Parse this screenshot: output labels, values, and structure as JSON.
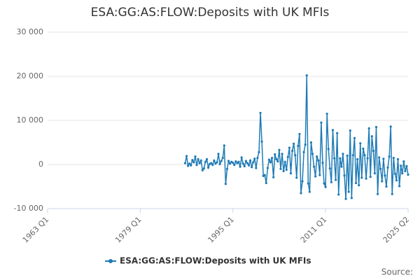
{
  "chart_data": {
    "type": "line",
    "title": "ESA:GG:AS:FLOW:Deposits with UK MFIs",
    "categories": [
      "1963 Q1",
      null,
      null,
      null,
      null,
      null,
      null,
      null,
      null,
      null,
      null,
      null,
      null,
      null,
      null,
      null,
      null,
      null,
      null,
      null,
      null,
      null,
      null,
      null,
      null,
      null,
      null,
      null,
      null,
      null,
      null,
      null,
      null,
      null,
      null,
      null,
      null,
      null,
      null,
      null,
      null,
      null,
      null,
      null,
      null,
      null,
      null,
      null,
      null,
      null,
      null,
      null,
      null,
      null,
      null,
      null,
      null,
      null,
      null,
      null,
      null,
      null,
      null,
      null,
      "1979 Q1",
      null,
      null,
      null,
      null,
      null,
      null,
      null,
      null,
      null,
      null,
      null,
      null,
      null,
      null,
      null,
      null,
      null,
      null,
      null,
      null,
      null,
      null,
      null,
      null,
      null,
      null,
      null,
      null,
      null,
      null,
      null,
      null,
      null,
      null,
      null,
      null,
      null,
      null,
      null,
      null,
      null,
      null,
      null,
      null,
      null,
      null,
      null,
      null,
      null,
      null,
      null,
      null,
      null,
      null,
      null,
      null,
      null,
      null,
      null,
      null,
      null,
      null,
      null,
      "1995 Q1",
      null,
      null,
      null,
      null,
      null,
      null,
      null,
      null,
      null,
      null,
      null,
      null,
      null,
      null,
      null,
      null,
      null,
      null,
      null,
      null,
      null,
      null,
      null,
      null,
      null,
      null,
      null,
      null,
      null,
      null,
      null,
      null,
      null,
      null,
      null,
      null,
      null,
      null,
      null,
      null,
      null,
      null,
      null,
      null,
      null,
      null,
      null,
      null,
      null,
      null,
      null,
      null,
      null,
      null,
      null,
      null,
      null,
      null,
      null,
      null,
      null,
      null,
      null,
      "2011 Q1",
      null,
      null,
      null,
      null,
      null,
      null,
      null,
      null,
      null,
      null,
      null,
      null,
      null,
      null,
      null,
      null,
      null,
      null,
      null,
      null,
      null,
      null,
      null,
      null,
      null,
      null,
      null,
      null,
      null,
      null,
      null,
      null,
      null,
      null,
      null,
      null,
      null,
      null,
      null,
      null,
      null,
      null,
      null,
      null,
      null,
      null,
      null,
      null,
      null,
      null,
      null,
      null,
      null,
      null,
      null,
      null,
      "2025 Q2"
    ],
    "series": [
      {
        "name": "ESA:GG:AS:FLOW:Deposits with UK MFIs",
        "color": "#1f7bb6",
        "values": [
          null,
          null,
          null,
          null,
          null,
          null,
          null,
          null,
          null,
          null,
          null,
          null,
          null,
          null,
          null,
          null,
          null,
          null,
          null,
          null,
          null,
          null,
          null,
          null,
          null,
          null,
          null,
          null,
          null,
          null,
          null,
          null,
          null,
          null,
          null,
          null,
          null,
          null,
          null,
          null,
          null,
          null,
          null,
          null,
          null,
          null,
          null,
          null,
          null,
          null,
          null,
          null,
          null,
          null,
          null,
          null,
          null,
          null,
          null,
          null,
          null,
          null,
          null,
          null,
          null,
          null,
          null,
          null,
          null,
          null,
          null,
          null,
          null,
          null,
          null,
          null,
          null,
          null,
          null,
          null,
          null,
          null,
          null,
          null,
          null,
          null,
          null,
          null,
          null,
          null,
          null,
          null,
          null,
          null,
          null,
          300,
          1900,
          -300,
          200,
          -200,
          1000,
          500,
          1800,
          -100,
          1200,
          300,
          900,
          -1300,
          -900,
          600,
          1200,
          -700,
          100,
          300,
          -100,
          900,
          200,
          500,
          2400,
          100,
          800,
          1500,
          4300,
          -4400,
          -1000,
          800,
          200,
          600,
          400,
          -100,
          700,
          300,
          600,
          -500,
          1600,
          200,
          -400,
          800,
          300,
          -200,
          900,
          -600,
          500,
          1300,
          -800,
          1500,
          2800,
          11700,
          5200,
          -2600,
          -2400,
          -4200,
          -800,
          1100,
          500,
          1500,
          -2900,
          2300,
          1200,
          700,
          3300,
          -1000,
          2400,
          -1500,
          600,
          -1200,
          1700,
          3800,
          -2000,
          3100,
          4700,
          2100,
          -3000,
          4200,
          6900,
          -6500,
          -3800,
          2800,
          4500,
          20200,
          -4300,
          -6200,
          5000,
          2400,
          -500,
          -2700,
          1800,
          900,
          -2400,
          9500,
          400,
          -4300,
          -5100,
          11500,
          3500,
          -900,
          -4000,
          7800,
          1400,
          -3500,
          7100,
          -6800,
          1400,
          -500,
          2400,
          -2500,
          -7800,
          2000,
          -6200,
          7700,
          -7600,
          2100,
          6000,
          -4200,
          1200,
          -4700,
          4800,
          -3000,
          3600,
          2100,
          -3200,
          1400,
          8200,
          -2800,
          6400,
          3100,
          -2000,
          8500,
          -6700,
          1600,
          -1000,
          -3800,
          1300,
          -2500,
          -5000,
          -700,
          1800,
          8600,
          -6700,
          1500,
          -2100,
          -3600,
          1200,
          -4900,
          -300,
          -2000,
          700,
          -1500,
          -400,
          -2300
        ]
      }
    ],
    "ylim": [
      -10000,
      30000
    ],
    "yticks": [
      {
        "value": -10000,
        "label": "-10 000"
      },
      0,
      {
        "value": 10000,
        "label": "10 000"
      },
      {
        "value": 20000,
        "label": "20 000"
      },
      {
        "value": 30000,
        "label": "30 000"
      }
    ],
    "grid": true,
    "markers": true,
    "legend": "bottom",
    "source": "Source:"
  }
}
